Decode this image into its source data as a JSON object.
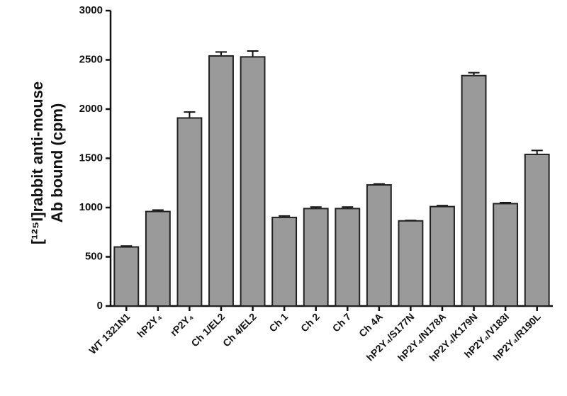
{
  "chart_data": {
    "type": "bar",
    "y_label": [
      "[¹²⁵I]rabbit anti-mouse",
      "Ab bound (cpm)"
    ],
    "categories": [
      "WT 1321N1",
      "hP2Y₄",
      "rP2Y₄",
      "Ch 1/EL2",
      "Ch 4/EL2",
      "Ch 1",
      "Ch 2",
      "Ch 7",
      "Ch 4A",
      "hP2Y₄/S177N",
      "hP2Y₄/N178A",
      "hP2Y₄/K179N",
      "hP2Y₄/V183I",
      "hP2Y₄/R190L"
    ],
    "values": [
      600,
      960,
      1910,
      2540,
      2530,
      900,
      990,
      990,
      1230,
      865,
      1010,
      2340,
      1040,
      1540
    ],
    "errors": [
      10,
      15,
      60,
      40,
      60,
      15,
      15,
      15,
      10,
      5,
      10,
      30,
      10,
      40
    ],
    "color": "#9a9a9a",
    "ylim": [
      0,
      3000
    ],
    "yticks": [
      0,
      500,
      1000,
      1500,
      2000,
      2500,
      3000
    ]
  }
}
